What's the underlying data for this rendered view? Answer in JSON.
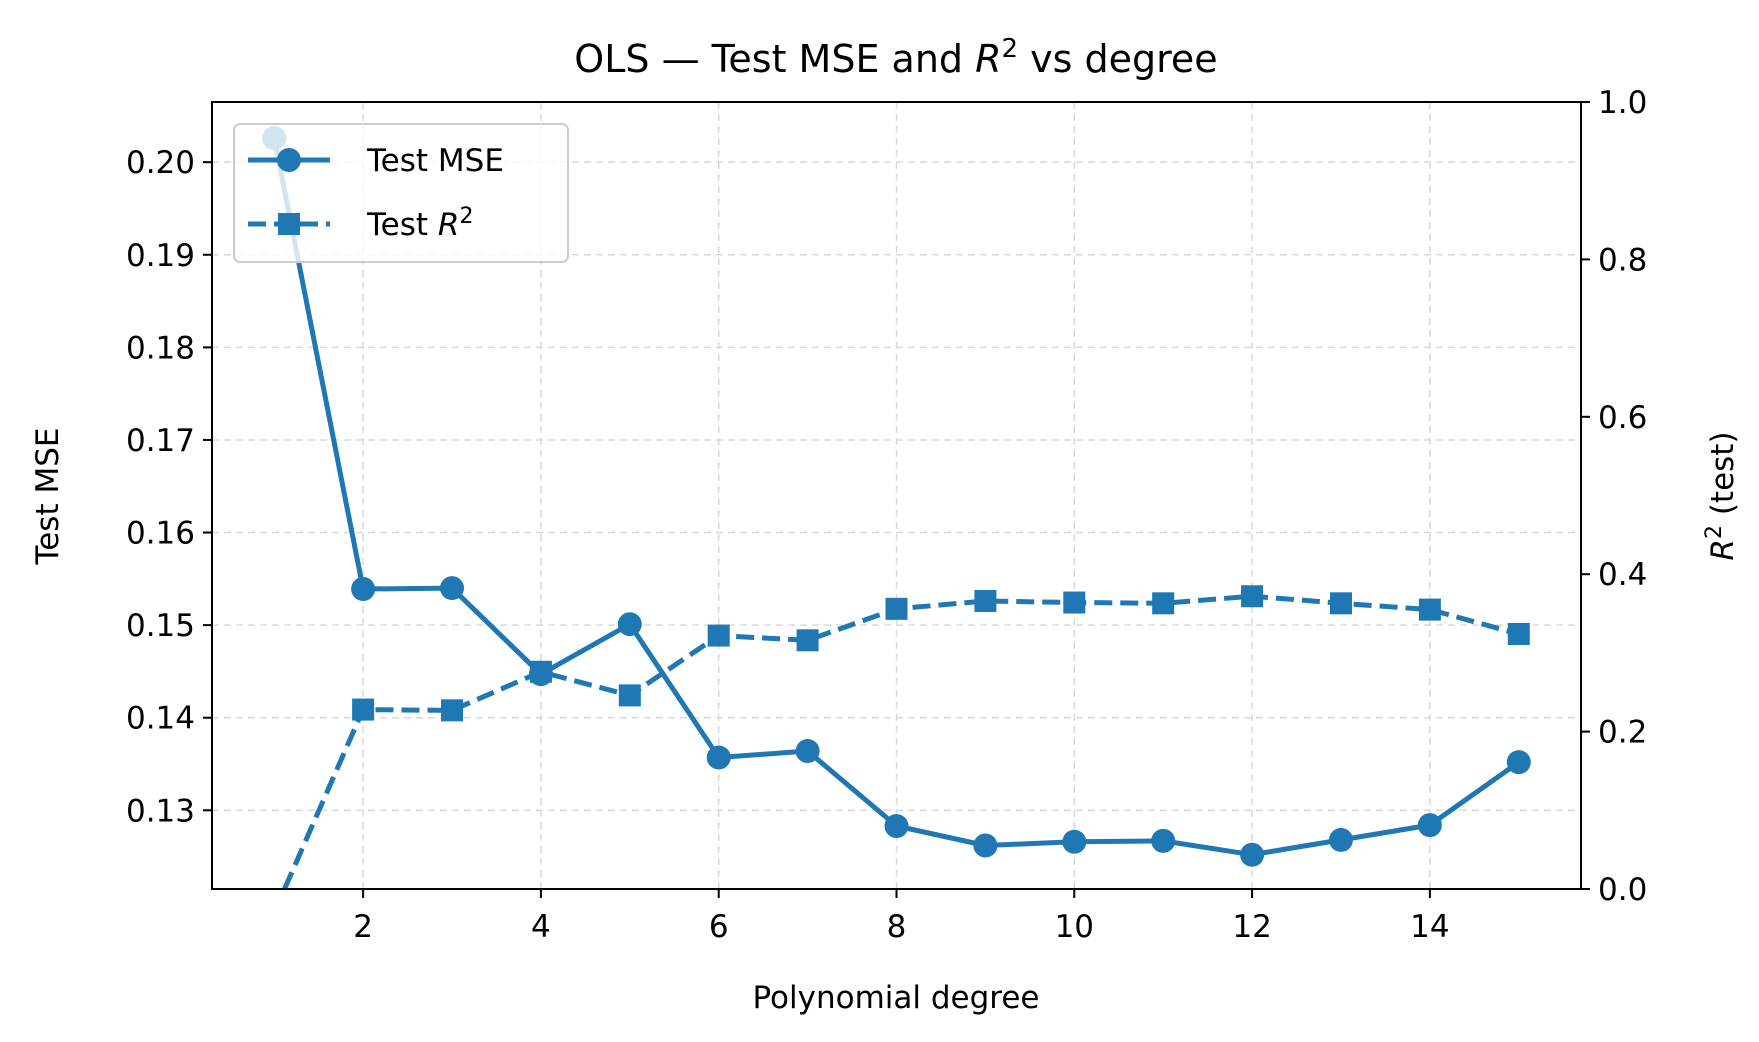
{
  "chart_data": {
    "type": "line",
    "title": "OLS — Test MSE and R² vs degree",
    "title_parts": {
      "prefix": "OLS — Test MSE and ",
      "var": "R",
      "sup": "2",
      "suffix": " vs degree"
    },
    "xlabel": "Polynomial degree",
    "ylabel_left": "Test MSE",
    "ylabel_right": {
      "var": "R",
      "sup": "2",
      "suffix": " (test)"
    },
    "x": [
      1,
      2,
      3,
      4,
      5,
      6,
      7,
      8,
      9,
      10,
      11,
      12,
      13,
      14,
      15
    ],
    "xlim": [
      0.3,
      15.7
    ],
    "ylim_left": [
      0.1215,
      0.2065
    ],
    "ylim_right": [
      0.0,
      1.0
    ],
    "x_ticks": [
      2,
      4,
      6,
      8,
      10,
      12,
      14
    ],
    "left_ticks": [
      0.13,
      0.14,
      0.15,
      0.16,
      0.17,
      0.18,
      0.19,
      0.2
    ],
    "right_ticks": [
      0.0,
      0.2,
      0.4,
      0.6,
      0.8,
      1.0
    ],
    "grid": true,
    "legend_position": "top-left",
    "color": "#1f77b4",
    "series": [
      {
        "name": "Test MSE",
        "axis": "left",
        "marker": "circle",
        "line_style": "solid",
        "values": [
          0.2026,
          0.1539,
          0.154,
          0.1447,
          0.1501,
          0.1357,
          0.1364,
          0.1283,
          0.1262,
          0.1266,
          0.1267,
          0.1252,
          0.1268,
          0.1284,
          0.1352
        ]
      },
      {
        "name": "Test R²",
        "name_parts": {
          "prefix": "Test ",
          "var": "R",
          "sup": "2"
        },
        "axis": "right",
        "marker": "square",
        "line_style": "dashed",
        "values": [
          -0.03,
          0.228,
          0.227,
          0.276,
          0.246,
          0.322,
          0.316,
          0.356,
          0.366,
          0.364,
          0.363,
          0.372,
          0.363,
          0.355,
          0.324
        ]
      }
    ]
  }
}
